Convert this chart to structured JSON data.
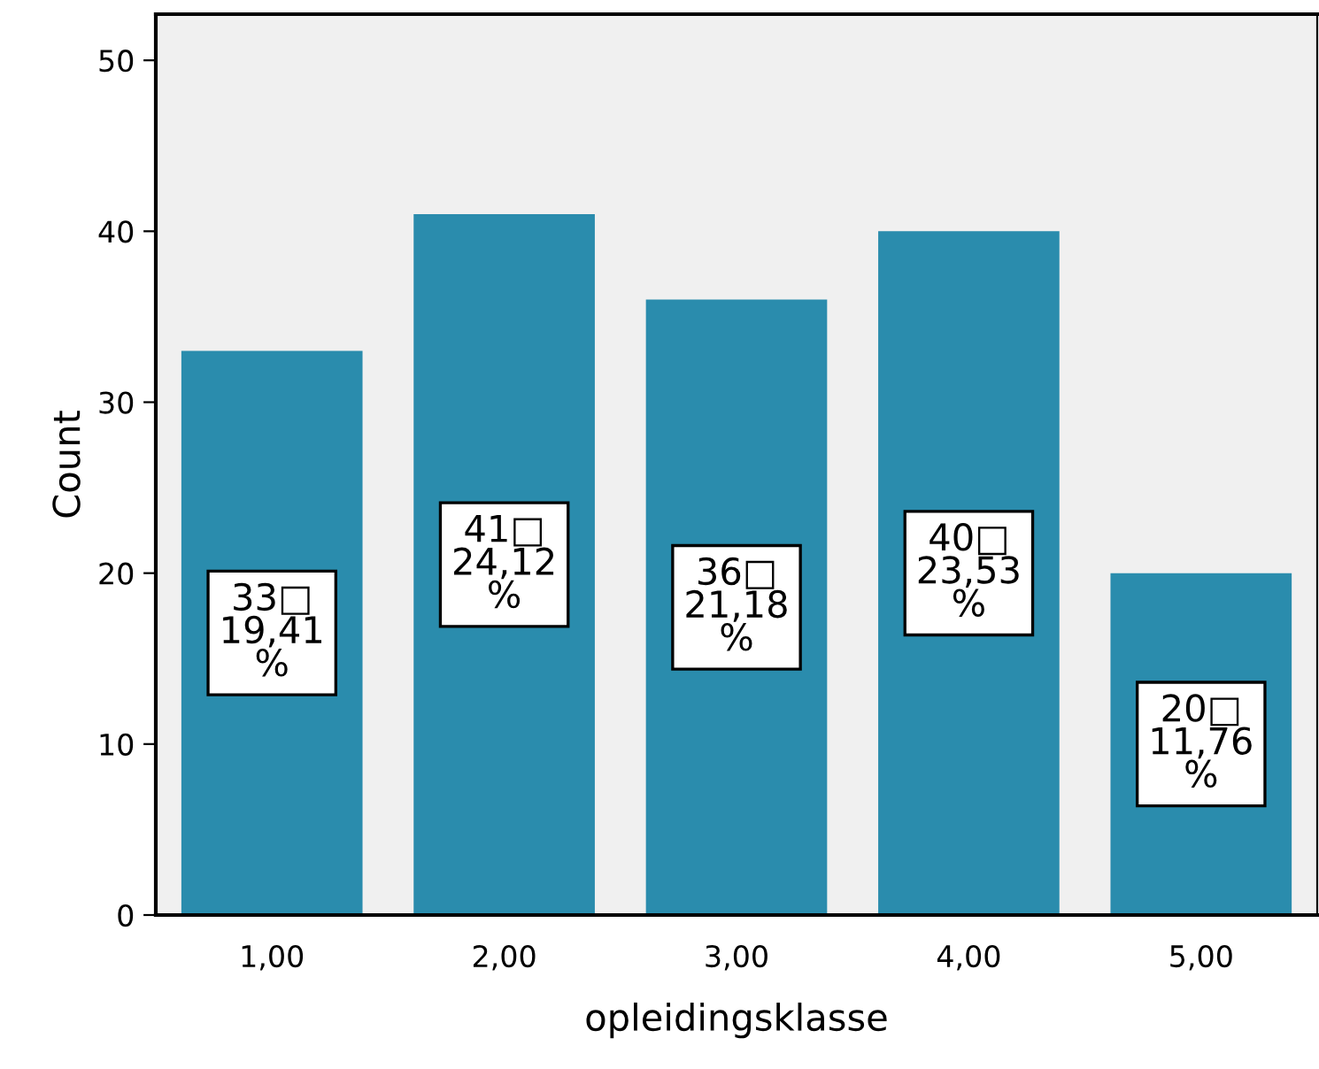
{
  "chart_data": {
    "type": "bar",
    "xlabel": "opleidingsklasse",
    "ylabel": "Count",
    "categories": [
      "1,00",
      "2,00",
      "3,00",
      "4,00",
      "5,00"
    ],
    "values": [
      33,
      41,
      36,
      40,
      20
    ],
    "color": "#2a8cad",
    "value_labels": [
      "33□\n19,41\n%",
      "41□\n24,12\n%",
      "36□\n21,18\n%",
      "40□\n23,53\n%",
      "20□\n11,76\n%"
    ],
    "ylim": [
      0,
      52.7
    ],
    "yticks": [
      0,
      10,
      20,
      30,
      40,
      50
    ],
    "grid": false,
    "legend": false
  }
}
